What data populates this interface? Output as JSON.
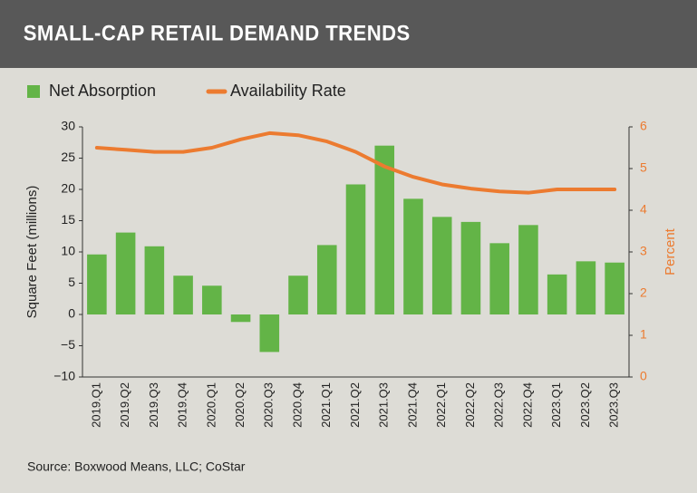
{
  "chart_data": {
    "type": "combo",
    "title": "SMALL-CAP RETAIL DEMAND TRENDS",
    "categories": [
      "2019.Q1",
      "2019.Q2",
      "2019.Q3",
      "2019.Q4",
      "2020.Q1",
      "2020.Q2",
      "2020.Q3",
      "2020.Q4",
      "2021.Q1",
      "2021.Q2",
      "2021.Q3",
      "2021.Q4",
      "2022.Q1",
      "2022.Q2",
      "2022.Q3",
      "2022.Q4",
      "2023.Q1",
      "2023.Q2",
      "2023.Q3"
    ],
    "series": [
      {
        "name": "Net Absorption",
        "color": "#63b447",
        "values": [
          9.6,
          13.1,
          10.9,
          6.2,
          4.6,
          -1.2,
          -6.0,
          6.2,
          11.1,
          20.8,
          27.0,
          18.5,
          15.6,
          14.8,
          11.4,
          14.3,
          6.4,
          8.5,
          8.3
        ]
      },
      {
        "name": "Availability Rate",
        "color": "#ec7b30",
        "axis": "y2",
        "values": [
          5.5,
          5.45,
          5.4,
          5.4,
          5.5,
          5.7,
          5.85,
          5.8,
          5.65,
          5.4,
          5.05,
          4.8,
          4.62,
          4.52,
          4.45,
          4.42,
          4.5,
          4.5,
          4.5
        ]
      }
    ],
    "ylabel": "Square Feet (millions)",
    "y2label": "Percent",
    "ylim": [
      -10,
      30
    ],
    "yticks": [
      {
        "value": -10,
        "label": "−10"
      },
      {
        "value": -5,
        "label": "−5"
      },
      0,
      5,
      10,
      15,
      20,
      25,
      30
    ],
    "y2lim": [
      0,
      6
    ],
    "y2ticks": [
      0,
      1,
      2,
      3,
      4,
      5,
      6
    ],
    "source": "Source: Boxwood Means, LLC; CoStar"
  }
}
